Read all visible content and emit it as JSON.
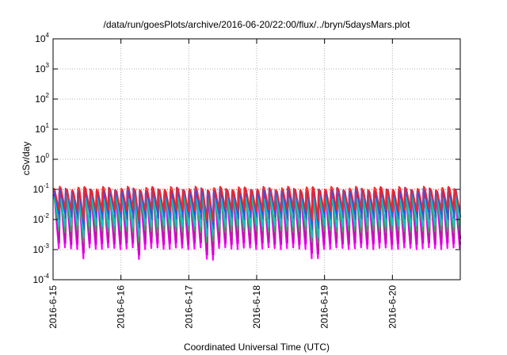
{
  "chart_data": {
    "type": "line",
    "title": "/data/run/goesPlots/archive/2016-06-20/22:00/flux/../bryn/5daysMars.plot",
    "xlabel": "Coordinated Universal Time (UTC)",
    "ylabel": "cSv/day",
    "y_scale": "log",
    "ylim": [
      0.0001,
      10000
    ],
    "y_ticks": [
      {
        "base": "10",
        "exp": "-4",
        "value": 0.0001
      },
      {
        "base": "10",
        "exp": "-3",
        "value": 0.001
      },
      {
        "base": "10",
        "exp": "-2",
        "value": 0.01
      },
      {
        "base": "10",
        "exp": "-1",
        "value": 0.1
      },
      {
        "base": "10",
        "exp": "0",
        "value": 1
      },
      {
        "base": "10",
        "exp": "1",
        "value": 10
      },
      {
        "base": "10",
        "exp": "2",
        "value": 100
      },
      {
        "base": "10",
        "exp": "3",
        "value": 1000
      },
      {
        "base": "10",
        "exp": "4",
        "value": 10000
      }
    ],
    "xlim": [
      "2016-6-15",
      "2016-6-21"
    ],
    "x_ticks": [
      "2016-6-15",
      "2016-6-16",
      "2016-6-17",
      "2016-6-18",
      "2016-6-19",
      "2016-6-20"
    ],
    "grid": true,
    "reference_line": {
      "value": 0.1,
      "color": "#ff0000",
      "style": "dotted"
    },
    "cycles_per_day": 11,
    "series": [
      {
        "color": "#ff00ff",
        "peak": 0.07,
        "trough": 0.0011
      },
      {
        "color": "#cc00cc",
        "peak": 0.06,
        "trough": 0.0016
      },
      {
        "color": "#aa3377",
        "peak": 0.08,
        "trough": 0.0024
      },
      {
        "color": "#33aa55",
        "peak": 0.05,
        "trough": 0.004
      },
      {
        "color": "#00cccc",
        "peak": 0.06,
        "trough": 0.006
      },
      {
        "color": "#3366cc",
        "peak": 0.09,
        "trough": 0.011
      },
      {
        "color": "#2255ee",
        "peak": 0.1,
        "trough": 0.016
      },
      {
        "color": "#ff2222",
        "peak": 0.11,
        "trough": 0.02
      }
    ]
  }
}
